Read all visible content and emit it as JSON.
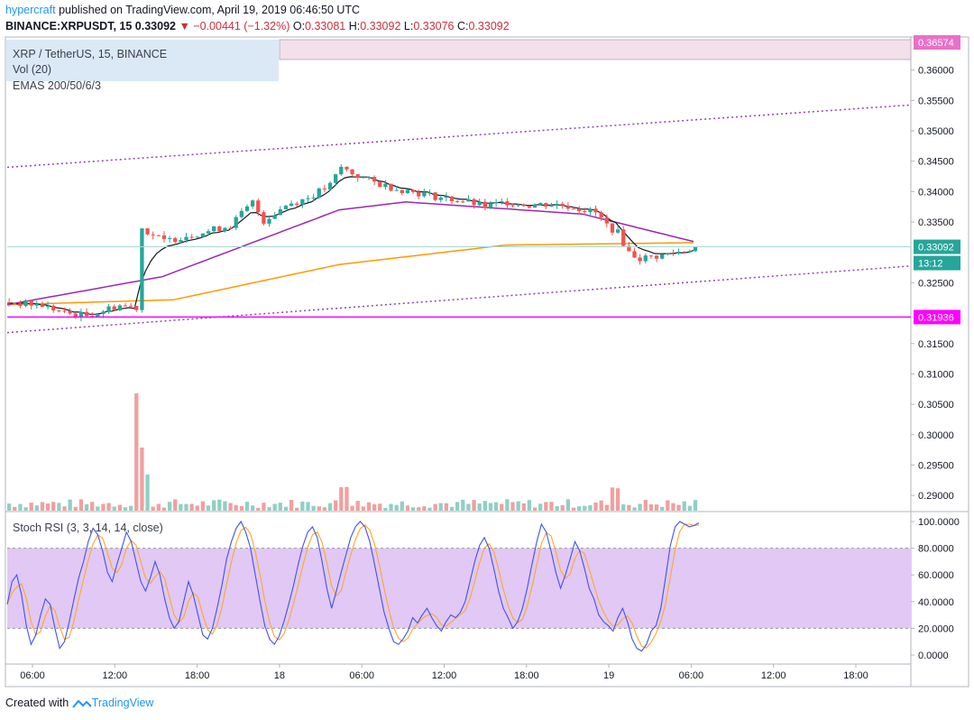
{
  "header": {
    "author": "hypercraft",
    "published": "published on TradingView.com, April 19, 2019 06:46:50 UTC",
    "symbol": "BINANCE:XRPUSDT, 15",
    "last": "0.33092",
    "arrow": "▼",
    "change": "−0.00441 (−1.32%)",
    "o_label": "O:",
    "o_value": "0.33081",
    "h_label": "H:",
    "h_value": "0.33092",
    "l_label": "L:",
    "l_value": "0.33076",
    "c_label": "C:",
    "c_value": "0.33092"
  },
  "legend": {
    "title": "XRP / TetherUS, 15, BINANCE",
    "volume": "Vol (20)",
    "emas": "EMAS 200/50/6/3"
  },
  "stoch": {
    "title": "Stoch RSI (3, 3, 14, 14, close)"
  },
  "footer": {
    "created": "Created with",
    "brand": "TradingView"
  },
  "colors": {
    "up": "#26a69a",
    "down": "#ef5350",
    "vol_up": "#8fd0c5",
    "vol_down": "#f0a09e",
    "ema200": "#ff9800",
    "ema50": "#9c27b0",
    "ema6": "#131722",
    "channel": "#8e44ad",
    "support": "#ff00ff",
    "stoch_k": "#3f51f5",
    "stoch_d": "#ffa726",
    "rsi_band": "#e1c8f5"
  },
  "chart_data": [
    {
      "type": "candlestick",
      "pair": "XRP / TetherUS",
      "interval": "15",
      "exchange": "BINANCE",
      "price_axis": {
        "ticks": [
          "0.36000",
          "0.35500",
          "0.35000",
          "0.34500",
          "0.34000",
          "0.33500",
          "0.32500",
          "0.31500",
          "0.31000",
          "0.30500",
          "0.30000",
          "0.29500",
          "0.29000"
        ],
        "range": [
          0.2875,
          0.365
        ]
      },
      "labels": {
        "current_price": "0.33092",
        "countdown": "13:12",
        "support": "0.31936",
        "top": "0.36574"
      },
      "time_axis": [
        "06:00",
        "12:00",
        "18:00",
        "18",
        "06:00",
        "12:00",
        "18:00",
        "19",
        "06:00",
        "12:00",
        "18:00"
      ],
      "price_path": [
        [
          0,
          0.3218
        ],
        [
          6,
          0.3213
        ],
        [
          10,
          0.32
        ],
        [
          14,
          0.3196
        ],
        [
          20,
          0.3213
        ],
        [
          23,
          0.321
        ],
        [
          24,
          0.334
        ],
        [
          28,
          0.3318
        ],
        [
          32,
          0.3328
        ],
        [
          36,
          0.3335
        ],
        [
          40,
          0.3345
        ],
        [
          44,
          0.3382
        ],
        [
          46,
          0.3352
        ],
        [
          50,
          0.3378
        ],
        [
          54,
          0.339
        ],
        [
          58,
          0.341
        ],
        [
          60,
          0.344
        ],
        [
          62,
          0.343
        ],
        [
          66,
          0.3415
        ],
        [
          70,
          0.3405
        ],
        [
          74,
          0.3398
        ],
        [
          78,
          0.339
        ],
        [
          82,
          0.3385
        ],
        [
          86,
          0.3375
        ],
        [
          90,
          0.3383
        ],
        [
          94,
          0.3378
        ],
        [
          98,
          0.338
        ],
        [
          102,
          0.3375
        ],
        [
          106,
          0.3365
        ],
        [
          108,
          0.3345
        ],
        [
          110,
          0.3332
        ],
        [
          112,
          0.33
        ],
        [
          114,
          0.329
        ],
        [
          118,
          0.3295
        ],
        [
          122,
          0.3303
        ],
        [
          124,
          0.3309
        ]
      ],
      "emas": {
        "ema200": [
          [
            0,
            0.3214
          ],
          [
            30,
            0.3222
          ],
          [
            60,
            0.328
          ],
          [
            90,
            0.3312
          ],
          [
            124,
            0.3316
          ]
        ],
        "ema50": [
          [
            0,
            0.3214
          ],
          [
            28,
            0.326
          ],
          [
            60,
            0.337
          ],
          [
            72,
            0.3383
          ],
          [
            104,
            0.3363
          ],
          [
            124,
            0.3318
          ]
        ]
      },
      "channel": {
        "upper": [
          [
            0,
            0.344
          ],
          [
            140,
            0.3528
          ]
        ],
        "lower": [
          [
            0,
            0.3168
          ],
          [
            140,
            0.3262
          ]
        ]
      },
      "volume": {
        "spike_index": 23
      }
    },
    {
      "type": "line",
      "title": "Stoch RSI (3, 3, 14, 14, close)",
      "y_ticks": [
        "100.0000",
        "80.0000",
        "60.0000",
        "40.0000",
        "20.0000",
        "0.0000"
      ],
      "ylim": [
        0,
        100
      ],
      "band": [
        20,
        80
      ],
      "series": [
        {
          "values": [
            38,
            55,
            60,
            45,
            22,
            8,
            15,
            30,
            42,
            38,
            20,
            5,
            10,
            25,
            42,
            58,
            70,
            85,
            95,
            90,
            78,
            62,
            55,
            68,
            80,
            92,
            85,
            70,
            55,
            48,
            58,
            70,
            60,
            42,
            28,
            20,
            25,
            40,
            55,
            45,
            30,
            15,
            12,
            20,
            35,
            52,
            72,
            85,
            95,
            100,
            92,
            80,
            60,
            40,
            22,
            12,
            8,
            14,
            25,
            38,
            52,
            68,
            82,
            92,
            96,
            88,
            70,
            50,
            35,
            48,
            62,
            75,
            88,
            96,
            100,
            96,
            85,
            68,
            50,
            32,
            20,
            10,
            8,
            12,
            18,
            28,
            24,
            30,
            35,
            28,
            22,
            18,
            25,
            30,
            28,
            32,
            40,
            55,
            70,
            82,
            88,
            80,
            65,
            48,
            35,
            28,
            20,
            25,
            35,
            50,
            68,
            85,
            98,
            92,
            78,
            62,
            50,
            60,
            72,
            85,
            78,
            65,
            50,
            42,
            30,
            25,
            22,
            18,
            28,
            35,
            25,
            12,
            5,
            3,
            8,
            18,
            22,
            35,
            58,
            82,
            96,
            100,
            98,
            96,
            97,
            99
          ]
        }
      ]
    }
  ]
}
